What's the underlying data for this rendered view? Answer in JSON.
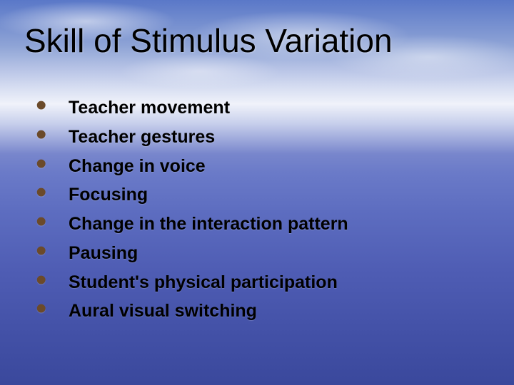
{
  "slide": {
    "title": "Skill of Stimulus Variation",
    "bullets": [
      "Teacher movement",
      "Teacher gestures",
      "Change in voice",
      "Focusing",
      "Change in the interaction pattern",
      "Pausing",
      "Student's physical participation",
      "Aural visual switching"
    ]
  },
  "style": {
    "title_color": "#000000",
    "title_fontsize": 46,
    "bullet_color": "#000000",
    "bullet_fontsize": 25,
    "bullet_marker_color": "#6b4a2a",
    "background_gradient": [
      "#5a78c8",
      "#8fa4d6",
      "#d8dff2",
      "#7886cc",
      "#4452a8",
      "#3a489c"
    ]
  }
}
